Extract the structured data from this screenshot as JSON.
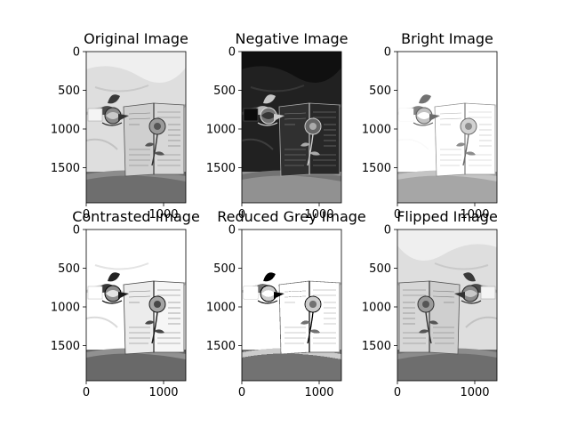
{
  "figure": {
    "panels": [
      {
        "id": "original",
        "title": "Original Image",
        "variant": "original",
        "y_ticks": [
          "0",
          "500",
          "1000",
          "1500"
        ],
        "x_ticks": [
          "0",
          "1000"
        ]
      },
      {
        "id": "negative",
        "title": "Negative Image",
        "variant": "negative",
        "y_ticks": [
          "0",
          "500",
          "1000",
          "1500"
        ],
        "x_ticks": [
          "0",
          "1000"
        ]
      },
      {
        "id": "bright",
        "title": "Bright Image",
        "variant": "bright",
        "y_ticks": [
          "0",
          "500",
          "1000",
          "1500"
        ],
        "x_ticks": [
          "0",
          "1000"
        ]
      },
      {
        "id": "contrasted",
        "title": "Contrasted Image",
        "variant": "contrasted",
        "y_ticks": [
          "0",
          "500",
          "1000",
          "1500"
        ],
        "x_ticks": [
          "0",
          "1000"
        ]
      },
      {
        "id": "reduced-grey",
        "title": "Reduced Grey Image",
        "variant": "reduced",
        "y_ticks": [
          "0",
          "500",
          "1000",
          "1500"
        ],
        "x_ticks": [
          "0",
          "1000"
        ]
      },
      {
        "id": "flipped",
        "title": "Flipped Image",
        "variant": "flipped",
        "y_ticks": [
          "0",
          "500",
          "1000",
          "1500"
        ],
        "x_ticks": [
          "0",
          "1000"
        ]
      }
    ]
  }
}
